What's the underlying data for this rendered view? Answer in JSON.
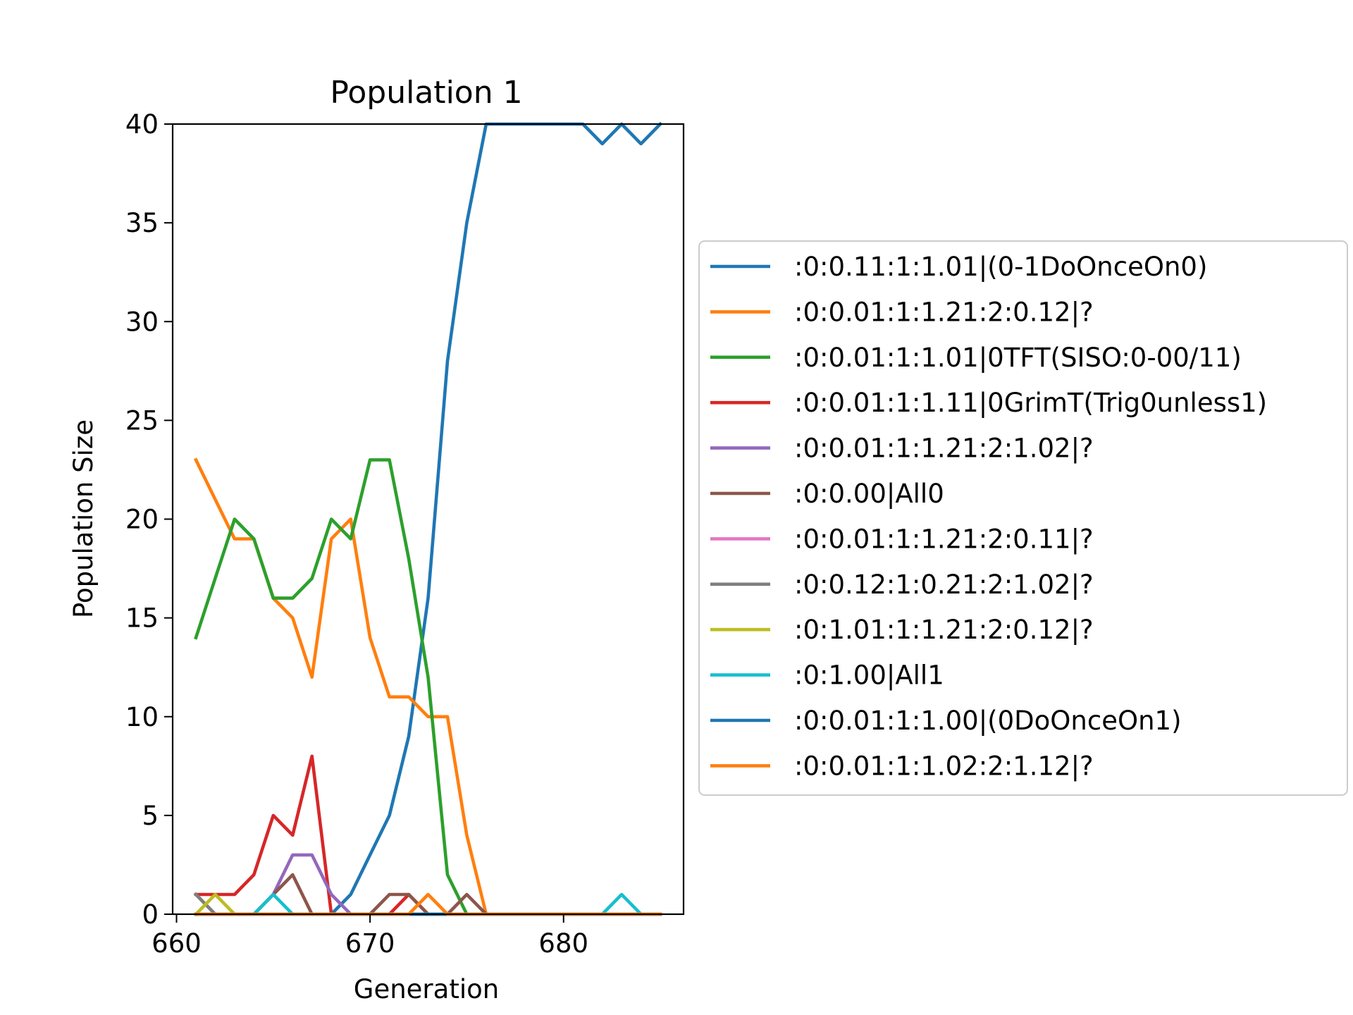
{
  "chart_data": {
    "type": "line",
    "title": "Population 1",
    "xlabel": "Generation",
    "ylabel": "Population Size",
    "xlim": [
      659.8,
      686.2
    ],
    "ylim": [
      0,
      40
    ],
    "xticks": [
      660,
      670,
      680
    ],
    "yticks": [
      0,
      5,
      10,
      15,
      20,
      25,
      30,
      35,
      40
    ],
    "grid": false,
    "legend_position": "right",
    "x": [
      661,
      662,
      663,
      664,
      665,
      666,
      667,
      668,
      669,
      670,
      671,
      672,
      673,
      674,
      675,
      676,
      677,
      678,
      679,
      680,
      681,
      682,
      683,
      684,
      685
    ],
    "series": [
      {
        "name": ":0:0.11:1:1.01|(0-1DoOnceOn0)",
        "color": "#1f77b4",
        "values": [
          0,
          0,
          0,
          0,
          0,
          0,
          0,
          0,
          1,
          3,
          5,
          9,
          16,
          28,
          35,
          40,
          40,
          40,
          40,
          40,
          40,
          39,
          40,
          39,
          40
        ]
      },
      {
        "name": ":0:0.01:1:1.21:2:0.12|?",
        "color": "#ff7f0e",
        "values": [
          23,
          21,
          19,
          19,
          16,
          15,
          12,
          19,
          20,
          14,
          11,
          11,
          10,
          10,
          4,
          0,
          0,
          0,
          0,
          0,
          0,
          0,
          0,
          0,
          0
        ]
      },
      {
        "name": ":0:0.01:1:1.01|0TFT(SISO:0-00/11)",
        "color": "#2ca02c",
        "values": [
          14,
          17,
          20,
          19,
          16,
          16,
          17,
          20,
          19,
          23,
          23,
          18,
          12,
          2,
          0,
          0,
          0,
          0,
          0,
          0,
          0,
          0,
          0,
          0,
          0
        ]
      },
      {
        "name": ":0:0.01:1:1.11|0GrimT(Trig0unless1)",
        "color": "#d62728",
        "values": [
          1,
          1,
          1,
          2,
          5,
          4,
          8,
          0,
          0,
          0,
          0,
          1,
          0,
          0,
          0,
          0,
          0,
          0,
          0,
          0,
          0,
          0,
          0,
          0,
          0
        ]
      },
      {
        "name": ":0:0.01:1:1.21:2:1.02|?",
        "color": "#9467bd",
        "values": [
          0,
          0,
          0,
          0,
          1,
          3,
          3,
          1,
          0,
          0,
          0,
          0,
          0,
          0,
          0,
          0,
          0,
          0,
          0,
          0,
          0,
          0,
          0,
          0,
          0
        ]
      },
      {
        "name": ":0:0.00|All0",
        "color": "#8c564b",
        "values": [
          1,
          0,
          0,
          0,
          1,
          2,
          0,
          0,
          0,
          0,
          1,
          1,
          0,
          0,
          1,
          0,
          0,
          0,
          0,
          0,
          0,
          0,
          0,
          0,
          0
        ]
      },
      {
        "name": ":0:0.01:1:1.21:2:0.11|?",
        "color": "#e377c2",
        "values": [
          0,
          0,
          0,
          0,
          0,
          0,
          0,
          0,
          0,
          0,
          0,
          0,
          0,
          0,
          0,
          0,
          0,
          0,
          0,
          0,
          0,
          0,
          0,
          0,
          0
        ]
      },
      {
        "name": ":0:0.12:1:0.21:2:1.02|?",
        "color": "#7f7f7f",
        "values": [
          1,
          0,
          0,
          0,
          0,
          0,
          0,
          0,
          0,
          0,
          0,
          0,
          0,
          0,
          0,
          0,
          0,
          0,
          0,
          0,
          0,
          0,
          0,
          0,
          0
        ]
      },
      {
        "name": ":0:1.01:1:1.21:2:0.12|?",
        "color": "#bcbd22",
        "values": [
          0,
          1,
          0,
          0,
          0,
          0,
          0,
          0,
          0,
          0,
          0,
          0,
          0,
          0,
          0,
          0,
          0,
          0,
          0,
          0,
          0,
          0,
          0,
          0,
          0
        ]
      },
      {
        "name": ":0:1.00|All1",
        "color": "#17becf",
        "values": [
          0,
          0,
          0,
          0,
          1,
          0,
          0,
          0,
          0,
          0,
          0,
          0,
          0,
          0,
          0,
          0,
          0,
          0,
          0,
          0,
          0,
          0,
          1,
          0,
          0
        ]
      },
      {
        "name": ":0:0.01:1:1.00|(0DoOnceOn1)",
        "color": "#1f77b4",
        "values": [
          0,
          0,
          0,
          0,
          0,
          0,
          0,
          0,
          0,
          0,
          0,
          0,
          0,
          0,
          0,
          0,
          0,
          0,
          0,
          0,
          0,
          0,
          0,
          0,
          0
        ]
      },
      {
        "name": ":0:0.01:1:1.02:2:1.12|?",
        "color": "#ff7f0e",
        "values": [
          0,
          0,
          0,
          0,
          0,
          0,
          0,
          0,
          0,
          0,
          0,
          0,
          1,
          0,
          0,
          0,
          0,
          0,
          0,
          0,
          0,
          0,
          0,
          0,
          0
        ]
      }
    ]
  }
}
